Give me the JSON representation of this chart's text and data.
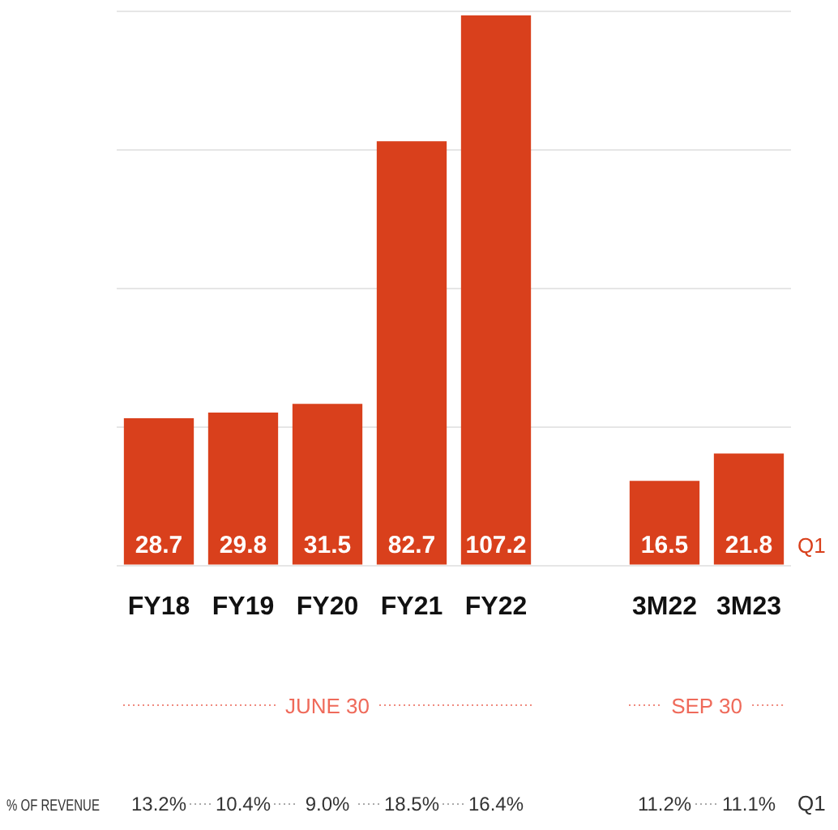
{
  "chart_data": {
    "type": "bar",
    "categories": [
      "FY18",
      "FY19",
      "FY20",
      "FY21",
      "FY22",
      null,
      "3M22",
      "3M23"
    ],
    "values": [
      28.7,
      29.8,
      31.5,
      82.7,
      107.2,
      null,
      16.5,
      21.8
    ],
    "color": "#d9401c",
    "data_labels": true,
    "ylim": [
      0,
      108
    ],
    "yticks": [
      {
        "value": 0,
        "label": null
      },
      {
        "value": 27,
        "label": null
      },
      {
        "value": 54,
        "label": null
      },
      {
        "value": 81,
        "label": null
      },
      {
        "value": 108,
        "label": null
      }
    ],
    "grid": "y",
    "tick_labels": "x",
    "annotations": [
      "Q1",
      "JUNE 30",
      "SEP 30",
      "% OF REVENUE",
      "13.2%",
      "10.4%",
      "9.0%",
      "18.5%",
      "16.4%",
      "11.2%",
      "11.1%",
      "Q1"
    ]
  }
}
